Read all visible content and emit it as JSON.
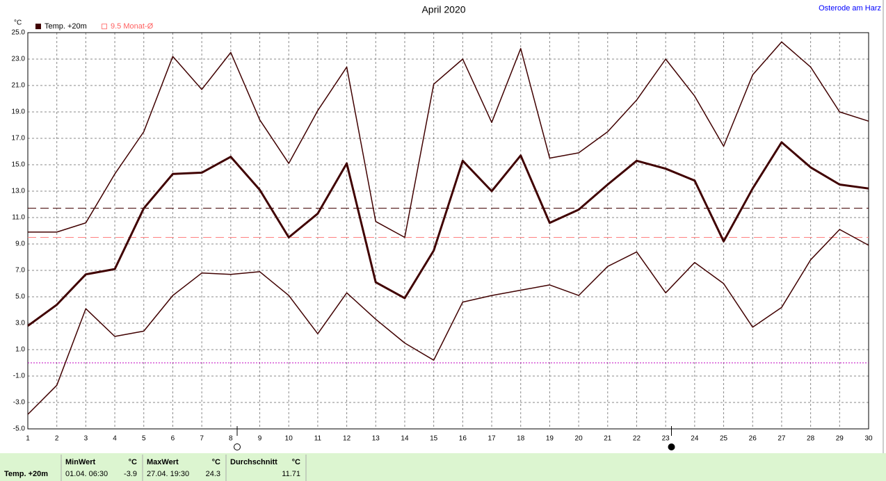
{
  "chart_data": {
    "type": "line",
    "title": "April 2020",
    "location": "Osterode am Harz",
    "y_label": "°C",
    "x": [
      1,
      2,
      3,
      4,
      5,
      6,
      7,
      8,
      9,
      10,
      11,
      12,
      13,
      14,
      15,
      16,
      17,
      18,
      19,
      20,
      21,
      22,
      23,
      24,
      25,
      26,
      27,
      28,
      29,
      30
    ],
    "xlim": [
      1,
      30
    ],
    "xticks": [
      1,
      2,
      3,
      4,
      5,
      6,
      7,
      8,
      9,
      10,
      11,
      12,
      13,
      14,
      15,
      16,
      17,
      18,
      19,
      20,
      21,
      22,
      23,
      24,
      25,
      26,
      27,
      28,
      29,
      30
    ],
    "ylim": [
      -5,
      25
    ],
    "yticks": [
      {
        "value": -5,
        "label": "-5.0"
      },
      {
        "value": -3,
        "label": "-3.0"
      },
      {
        "value": -1,
        "label": "-1.0"
      },
      {
        "value": 1,
        "label": "1.0"
      },
      {
        "value": 3,
        "label": "3.0"
      },
      {
        "value": 5,
        "label": "5.0"
      },
      {
        "value": 7,
        "label": "7.0"
      },
      {
        "value": 9,
        "label": "9.0"
      },
      {
        "value": 11,
        "label": "11.0"
      },
      {
        "value": 13,
        "label": "13.0"
      },
      {
        "value": 15,
        "label": "15.0"
      },
      {
        "value": 17,
        "label": "17.0"
      },
      {
        "value": 19,
        "label": "19.0"
      },
      {
        "value": 21,
        "label": "21.0"
      },
      {
        "value": 23,
        "label": "23.0"
      },
      {
        "value": 25,
        "label": "25.0"
      }
    ],
    "grid": true,
    "series": [
      {
        "name": "Temp. +20m",
        "color": "#400000",
        "width": 3,
        "values": [
          2.8,
          4.4,
          6.7,
          7.1,
          11.7,
          14.3,
          14.4,
          15.6,
          13.1,
          9.5,
          11.3,
          15.1,
          6.1,
          4.9,
          8.5,
          15.3,
          13.0,
          15.7,
          10.6,
          11.6,
          13.5,
          15.3,
          14.7,
          13.8,
          9.2,
          13.2,
          16.7,
          14.8,
          13.5,
          13.2
        ]
      },
      {
        "color": "#400000",
        "width": 1.5,
        "values": [
          9.9,
          9.9,
          10.6,
          14.3,
          17.5,
          23.2,
          20.7,
          23.5,
          18.4,
          15.1,
          19.1,
          22.4,
          10.7,
          9.5,
          21.1,
          23.0,
          18.2,
          23.8,
          15.5,
          15.9,
          17.5,
          19.9,
          23.0,
          20.2,
          16.4,
          21.8,
          24.3,
          22.4,
          19.0,
          18.3
        ]
      },
      {
        "color": "#400000",
        "width": 1.5,
        "values": [
          -3.9,
          -1.7,
          4.1,
          2.0,
          2.4,
          5.1,
          6.8,
          6.7,
          6.9,
          5.1,
          2.2,
          5.3,
          3.3,
          1.5,
          0.2,
          4.6,
          5.1,
          5.5,
          5.9,
          5.1,
          7.3,
          8.4,
          5.3,
          7.6,
          6.0,
          2.7,
          4.2,
          7.8,
          10.1,
          8.9
        ]
      }
    ],
    "reference_line": {
      "value": 9.5,
      "label": "9.5 Monat-Ø",
      "color": "#ff8080"
    },
    "average_line_color": "#400000",
    "zero_line": {
      "value": 0,
      "color": "#c000c0"
    },
    "moon_markers": [
      {
        "x": 8.22,
        "fill": "#ffffff"
      },
      {
        "x": 23.2,
        "fill": "#000000"
      }
    ]
  },
  "summary": {
    "row_label": "Temp. +20m",
    "columns": [
      {
        "header": "MinWert",
        "unit": "°C",
        "time": "01.04.  06:30",
        "value": -3.9
      },
      {
        "header": "MaxWert",
        "unit": "°C",
        "time": "27.04.  19:30",
        "value": 24.3
      },
      {
        "header": "Durchschnitt",
        "unit": "°C",
        "value": 11.71
      }
    ]
  }
}
